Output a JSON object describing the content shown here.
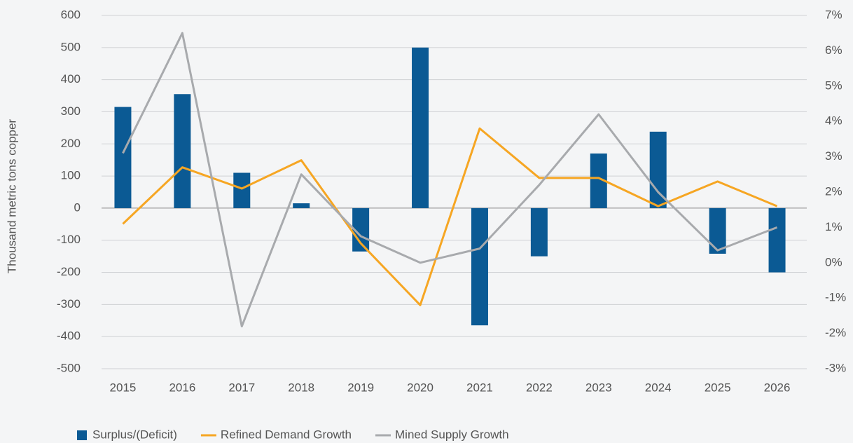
{
  "chart_data": {
    "type": "bar",
    "y_label": "Thousand metric tons copper",
    "categories": [
      "2015",
      "2016",
      "2017",
      "2018",
      "2019",
      "2020",
      "2021",
      "2022",
      "2023",
      "2024",
      "2025",
      "2026"
    ],
    "series": [
      {
        "name": "Surplus/(Deficit)",
        "type": "bar",
        "color": "#0b5a94",
        "values": [
          315,
          355,
          110,
          15,
          -135,
          500,
          -365,
          -150,
          170,
          238,
          -142,
          -200
        ]
      },
      {
        "name": "Refined Demand Growth",
        "type": "line",
        "axis": "y2",
        "color": "#f6a623",
        "values": [
          1.1,
          2.7,
          2.1,
          2.9,
          0.55,
          -1.2,
          3.8,
          2.4,
          2.4,
          1.6,
          2.3,
          1.6
        ]
      },
      {
        "name": "Mined Supply Growth",
        "type": "line",
        "axis": "y2",
        "color": "#a8aaad",
        "values": [
          3.1,
          6.5,
          -1.8,
          2.5,
          0.75,
          0.0,
          0.4,
          2.2,
          4.2,
          2.0,
          0.35,
          1.0
        ]
      }
    ],
    "ylim": [
      -500,
      600
    ],
    "yticks": [
      -500,
      -400,
      -300,
      -200,
      -100,
      0,
      100,
      200,
      300,
      400,
      500,
      600
    ],
    "y2lim": [
      -3,
      7
    ],
    "y2ticks": [
      {
        "value": -3,
        "label": "-3%"
      },
      {
        "value": -2,
        "label": "-2%"
      },
      {
        "value": -1,
        "label": "-1%"
      },
      {
        "value": 0,
        "label": "0%"
      },
      {
        "value": 1,
        "label": "1%"
      },
      {
        "value": 2,
        "label": "2%"
      },
      {
        "value": 3,
        "label": "3%"
      },
      {
        "value": 4,
        "label": "4%"
      },
      {
        "value": 5,
        "label": "5%"
      },
      {
        "value": 6,
        "label": "6%"
      },
      {
        "value": 7,
        "label": "7%"
      }
    ],
    "grid": true,
    "legend": "bottom-left"
  }
}
